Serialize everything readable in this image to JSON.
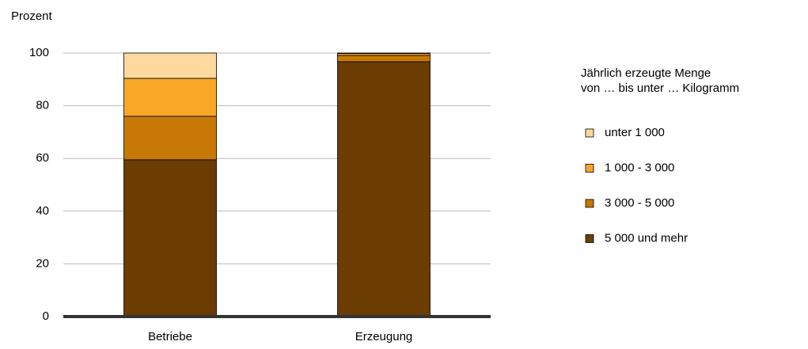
{
  "chart_data": {
    "type": "stacked_bar",
    "y_axis_label": "Prozent",
    "legend_title": [
      "Jährlich erzeugte Menge",
      "von … bis unter … Kilogramm"
    ],
    "categories": [
      "Betriebe",
      "Erzeugung"
    ],
    "series": [
      {
        "name": "unter 1 000",
        "color": "#fdd9a0",
        "values": [
          9.6,
          0.2
        ]
      },
      {
        "name": "1 000 - 3 000",
        "color": "#f9a727",
        "values": [
          14.4,
          0.7
        ]
      },
      {
        "name": "3 000 - 5 000",
        "color": "#c87805",
        "values": [
          16.5,
          2.4
        ]
      },
      {
        "name": "5 000 und mehr",
        "color": "#6b3d02",
        "values": [
          59.5,
          96.7
        ]
      }
    ],
    "ylim": [
      0,
      100
    ],
    "yticks": [
      0,
      20,
      40,
      60,
      80,
      100
    ],
    "grid": true,
    "legend": "right"
  }
}
